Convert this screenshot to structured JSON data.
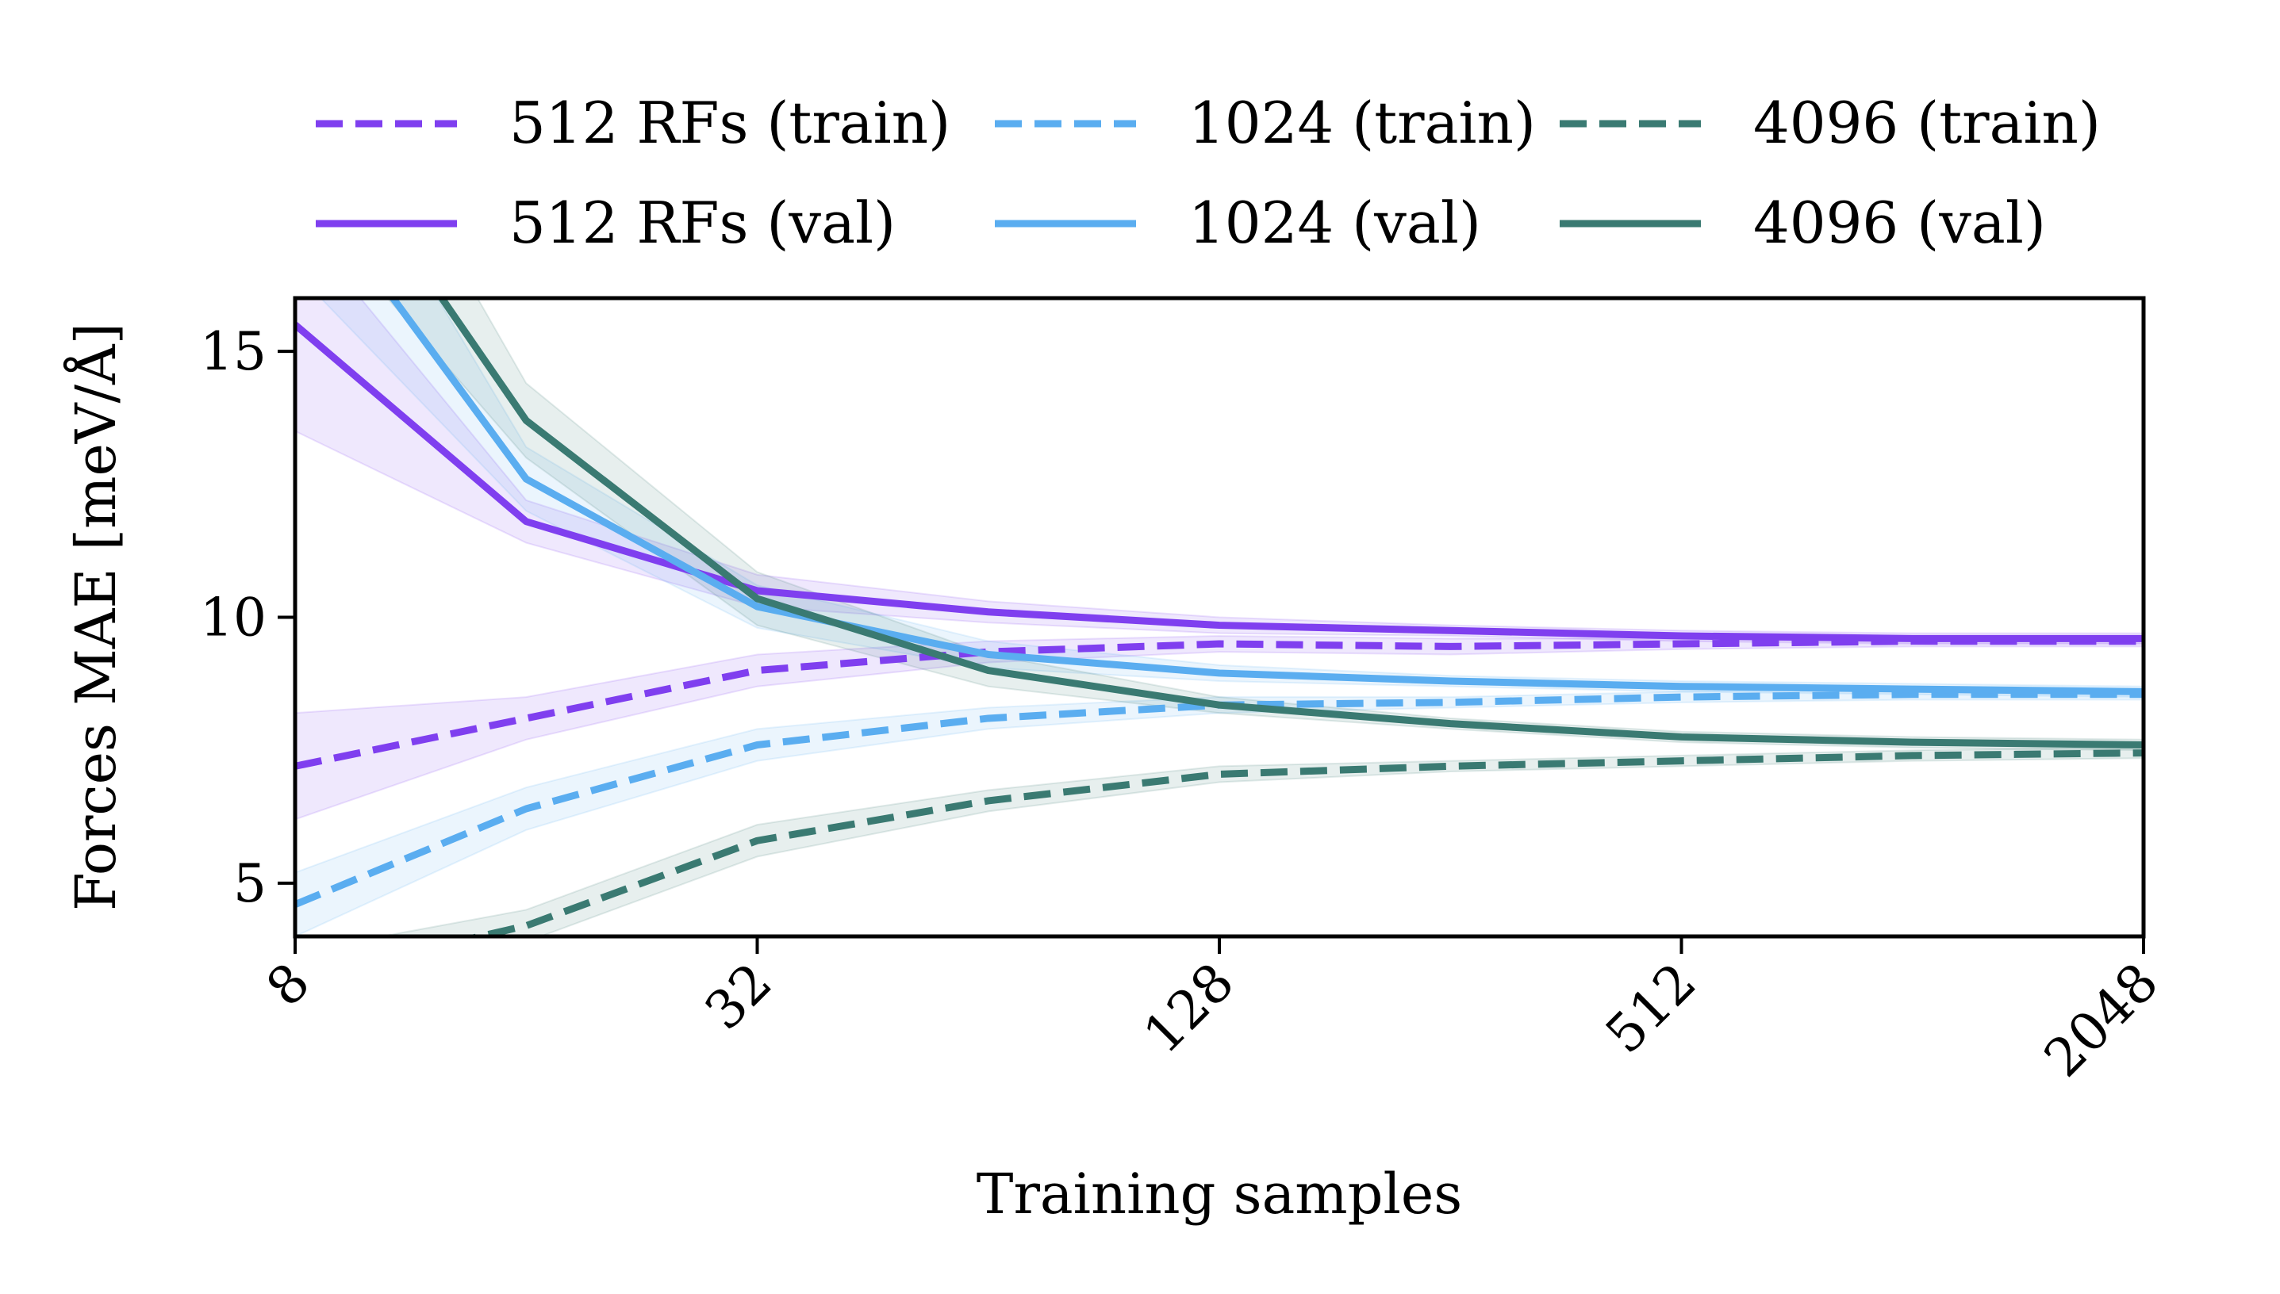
{
  "chart_data": {
    "type": "line",
    "xlabel": "Training samples",
    "ylabel": "Forces MAE [meV/Å]",
    "x_scale": "log2",
    "xlim": [
      8,
      2048
    ],
    "ylim": [
      4,
      16
    ],
    "x_ticks": [
      8,
      32,
      128,
      512,
      2048
    ],
    "x_tick_labels": [
      "8",
      "32",
      "128",
      "512",
      "2048"
    ],
    "y_ticks": [
      5,
      10,
      15
    ],
    "y_tick_labels": [
      "5",
      "10",
      "15"
    ],
    "legend_position": "top, above plot, 3 columns",
    "x": [
      8,
      16,
      32,
      64,
      128,
      256,
      512,
      1024,
      2048
    ],
    "series": [
      {
        "name": "512 RFs (train)",
        "color": "#7f3fef",
        "style": "dashed",
        "values": [
          7.2,
          8.1,
          9.0,
          9.35,
          9.5,
          9.45,
          9.5,
          9.55,
          9.55
        ],
        "band": [
          1.0,
          0.4,
          0.3,
          0.2,
          0.15,
          0.15,
          0.1,
          0.1,
          0.1
        ]
      },
      {
        "name": "512 RFs (val)",
        "color": "#7f3fef",
        "style": "solid",
        "values": [
          15.5,
          11.8,
          10.5,
          10.1,
          9.85,
          9.75,
          9.65,
          9.6,
          9.6
        ],
        "band": [
          2.0,
          0.4,
          0.3,
          0.2,
          0.15,
          0.1,
          0.1,
          0.1,
          0.1
        ]
      },
      {
        "name": "1024 (train)",
        "color": "#5aadf0",
        "style": "dashed",
        "values": [
          4.6,
          6.4,
          7.6,
          8.1,
          8.35,
          8.4,
          8.5,
          8.55,
          8.55
        ],
        "band": [
          0.6,
          0.4,
          0.3,
          0.2,
          0.15,
          0.1,
          0.1,
          0.1,
          0.1
        ]
      },
      {
        "name": "1024 (val)",
        "color": "#5aadf0",
        "style": "solid",
        "values": [
          18.5,
          12.6,
          10.2,
          9.3,
          8.95,
          8.8,
          8.7,
          8.65,
          8.6
        ],
        "band": [
          2.0,
          0.6,
          0.4,
          0.25,
          0.15,
          0.1,
          0.1,
          0.1,
          0.1
        ]
      },
      {
        "name": "4096 (train)",
        "color": "#3a7a72",
        "style": "dashed",
        "values": [
          3.2,
          4.2,
          5.8,
          6.55,
          7.05,
          7.2,
          7.3,
          7.4,
          7.45
        ],
        "band": [
          0.5,
          0.3,
          0.3,
          0.2,
          0.15,
          0.1,
          0.1,
          0.1,
          0.1
        ]
      },
      {
        "name": "4096 (val)",
        "color": "#3a7a72",
        "style": "solid",
        "values": [
          20.0,
          13.7,
          10.35,
          9.0,
          8.35,
          8.0,
          7.75,
          7.65,
          7.6
        ],
        "band": [
          2.0,
          0.7,
          0.5,
          0.3,
          0.15,
          0.1,
          0.1,
          0.1,
          0.1
        ]
      }
    ]
  }
}
